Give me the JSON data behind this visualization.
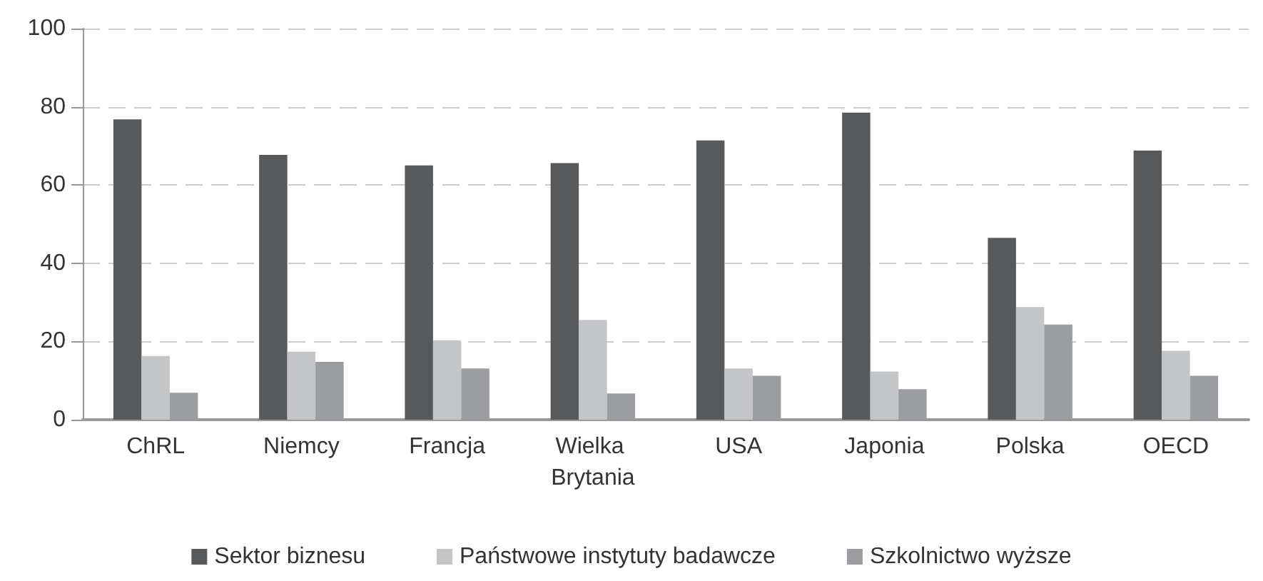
{
  "chart_data": {
    "type": "bar",
    "categories": [
      "ChRL",
      "Niemcy",
      "Francja",
      "Wielka Brytania",
      "USA",
      "Japonia",
      "Polska",
      "OECD"
    ],
    "series": [
      {
        "name": "Sektor biznesu",
        "color": "#58595b",
        "values": [
          76.8,
          67.7,
          65.0,
          65.6,
          71.4,
          78.5,
          46.5,
          68.8
        ]
      },
      {
        "name": "Państwowe instytuty badawcze",
        "color": "#c4c5c7",
        "values": [
          16.3,
          17.4,
          20.3,
          25.5,
          13.1,
          12.3,
          28.8,
          17.6
        ]
      },
      {
        "name": "Szkolnictwo wyższe",
        "color": "#9c9da0",
        "values": [
          6.9,
          14.8,
          13.1,
          6.7,
          11.2,
          7.8,
          24.3,
          11.2
        ]
      }
    ],
    "ylim": [
      0,
      100
    ],
    "yticks": [
      0,
      20,
      40,
      60,
      80,
      100
    ],
    "grid": "y",
    "legend": "bottom"
  }
}
